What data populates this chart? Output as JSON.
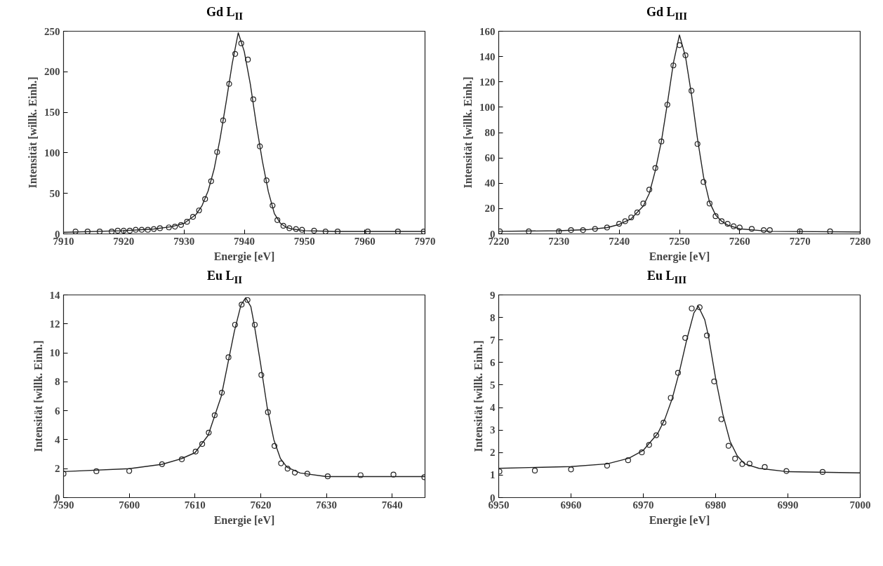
{
  "chart_data": [
    {
      "type": "scatter",
      "title": "Gd L$_{II}$",
      "xlabel": "Energie [eV]",
      "ylabel": "Intensität [willk. Einh.]",
      "xlim": [
        7910,
        7970
      ],
      "xticks": [
        7910,
        7920,
        7930,
        7940,
        7950,
        7960,
        7970
      ],
      "ylim": [
        0,
        250
      ],
      "yticks": [
        0,
        50,
        100,
        150,
        200,
        250
      ],
      "grid": false,
      "series": [
        {
          "marker": "circle",
          "color": "#222222",
          "x": [
            7912,
            7914,
            7916,
            7918,
            7919,
            7920,
            7921,
            7922,
            7923,
            7924,
            7925,
            7926,
            7927.5,
            7928.5,
            7929.5,
            7930.5,
            7931.5,
            7932.5,
            7933.5,
            7934.5,
            7935.5,
            7936.5,
            7937.5,
            7938.5,
            7939.5,
            7940.6,
            7941.5,
            7942.6,
            7943.7,
            7944.7,
            7945.5,
            7946.5,
            7947.5,
            7948.6,
            7949.6,
            7951.6,
            7953.5,
            7955.5,
            7960.5,
            7965.5,
            7969.8
          ],
          "values": [
            3,
            3,
            3,
            3,
            4,
            4,
            4,
            5,
            5,
            5,
            6,
            7,
            8,
            9,
            11,
            15,
            21,
            29,
            43,
            65,
            101,
            140,
            185,
            222,
            235,
            215,
            166,
            108,
            66,
            35,
            17,
            10,
            7,
            6,
            5,
            4,
            3,
            3,
            3,
            3,
            3
          ]
        },
        {
          "type": "line",
          "marker": "none",
          "line_style": "solid",
          "color": "#222222",
          "x": [
            7910,
            7920,
            7925,
            7928,
            7930,
            7932,
            7933,
            7934,
            7935,
            7936,
            7937,
            7938,
            7939,
            7940,
            7941,
            7942,
            7943,
            7944,
            7945,
            7946,
            7947,
            7948,
            7950,
            7955,
            7970
          ],
          "values": [
            2,
            4,
            6,
            9,
            13,
            24,
            35,
            53,
            80,
            118,
            163,
            210,
            248,
            225,
            185,
            135,
            90,
            52,
            25,
            13,
            8,
            6,
            4,
            3,
            3
          ]
        }
      ]
    },
    {
      "type": "scatter",
      "title": "Gd L$_{III}$",
      "xlabel": "Energie [eV]",
      "ylabel": "Intensität [willk. Einh.]",
      "xlim": [
        7220,
        7280
      ],
      "xticks": [
        7220,
        7230,
        7240,
        7250,
        7260,
        7270,
        7280
      ],
      "ylim": [
        0,
        160
      ],
      "yticks": [
        0,
        20,
        40,
        60,
        80,
        100,
        120,
        140,
        160
      ],
      "grid": false,
      "series": [
        {
          "marker": "circle",
          "color": "#222222",
          "x": [
            7220.2,
            7225,
            7230,
            7232,
            7234,
            7236,
            7238,
            7240,
            7241,
            7242,
            7243,
            7244,
            7245,
            7246,
            7247,
            7248,
            7249,
            7250,
            7251,
            7252,
            7253,
            7254,
            7255,
            7256,
            7257,
            7258,
            7259,
            7260,
            7262,
            7264,
            7265,
            7270,
            7275
          ],
          "values": [
            2,
            2,
            2,
            3,
            3,
            4,
            5,
            8,
            10,
            13,
            17,
            24,
            35,
            52,
            73,
            102,
            133,
            149,
            141,
            113,
            71,
            41,
            24,
            14,
            10,
            8,
            6,
            5,
            4,
            3,
            3,
            2,
            2
          ]
        },
        {
          "type": "line",
          "marker": "none",
          "line_style": "solid",
          "color": "#222222",
          "x": [
            7220,
            7230,
            7235,
            7238,
            7240,
            7242,
            7244,
            7245,
            7246,
            7247,
            7248,
            7249,
            7250,
            7251,
            7252,
            7253,
            7254,
            7255,
            7256,
            7257,
            7258,
            7260,
            7265,
            7280
          ],
          "values": [
            2,
            2.5,
            3.5,
            5,
            7.5,
            12,
            22,
            32,
            50,
            73,
            103,
            135,
            157,
            140,
            110,
            75,
            45,
            25,
            15,
            10,
            7,
            4,
            2,
            1.5
          ]
        }
      ]
    },
    {
      "type": "scatter",
      "title": "Eu L$_{II}$",
      "xlabel": "Energie [eV]",
      "ylabel": "Intensität [willk. Einh.]",
      "xlim": [
        7590,
        7645
      ],
      "xticks": [
        7590,
        7600,
        7610,
        7620,
        7630,
        7640
      ],
      "ylim": [
        0,
        14
      ],
      "yticks": [
        0,
        2,
        4,
        6,
        8,
        10,
        12,
        14
      ],
      "grid": false,
      "series": [
        {
          "marker": "circle",
          "color": "#222222",
          "x": [
            7590,
            7595,
            7600,
            7605,
            7608,
            7610.1,
            7611.1,
            7612.1,
            7613,
            7614.1,
            7615.1,
            7616.1,
            7617.1,
            7618,
            7619.1,
            7620.1,
            7621.1,
            7622.1,
            7623.1,
            7624.1,
            7625.2,
            7627.1,
            7630.2,
            7635.2,
            7640.2,
            7644.9
          ],
          "values": [
            1.65,
            1.82,
            1.84,
            2.31,
            2.65,
            3.18,
            3.7,
            4.49,
            5.69,
            7.25,
            9.69,
            11.94,
            13.33,
            13.65,
            11.94,
            8.47,
            5.9,
            3.57,
            2.37,
            2.0,
            1.73,
            1.65,
            1.47,
            1.55,
            1.59,
            1.41
          ]
        },
        {
          "type": "line",
          "marker": "none",
          "line_style": "solid",
          "color": "#222222",
          "x": [
            7590,
            7600,
            7605,
            7608,
            7610,
            7612,
            7614,
            7616,
            7617,
            7617.7,
            7618.5,
            7619,
            7620,
            7621,
            7622,
            7623,
            7624,
            7626,
            7630,
            7645
          ],
          "values": [
            1.8,
            2.0,
            2.3,
            2.7,
            3.1,
            4.3,
            7.0,
            11.5,
            13.3,
            13.8,
            13.2,
            12,
            9.2,
            6.2,
            4.0,
            2.7,
            2.1,
            1.7,
            1.45,
            1.45
          ]
        }
      ]
    },
    {
      "type": "scatter",
      "title": "Eu L$_{III}$",
      "xlabel": "Energie [eV]",
      "ylabel": "Intensität [willk. Einh.]",
      "xlim": [
        6950,
        7000
      ],
      "xticks": [
        6950,
        6960,
        6970,
        6980,
        6990,
        7000
      ],
      "ylim": [
        0,
        9
      ],
      "yticks": [
        0,
        1,
        2,
        3,
        4,
        5,
        6,
        7,
        8,
        9
      ],
      "grid": false,
      "series": [
        {
          "marker": "circle",
          "color": "#222222",
          "x": [
            6950.1,
            6955,
            6960,
            6965,
            6967.9,
            6969.8,
            6970.8,
            6971.8,
            6972.8,
            6973.8,
            6974.8,
            6975.8,
            6976.7,
            6977.8,
            6978.8,
            6979.8,
            6980.8,
            6981.8,
            6982.7,
            6983.7,
            6984.7,
            6986.8,
            6989.8,
            6994.8
          ],
          "values": [
            1.16,
            1.2,
            1.25,
            1.42,
            1.66,
            2.01,
            2.34,
            2.77,
            3.33,
            4.43,
            5.54,
            7.09,
            8.4,
            8.45,
            7.2,
            5.16,
            3.48,
            2.3,
            1.73,
            1.49,
            1.51,
            1.36,
            1.18,
            1.14
          ]
        },
        {
          "type": "line",
          "marker": "none",
          "line_style": "solid",
          "color": "#222222",
          "x": [
            6950,
            6960,
            6965,
            6968,
            6970,
            6972,
            6973,
            6974,
            6975,
            6976,
            6977,
            6977.6,
            6978.5,
            6979,
            6980,
            6981,
            6982,
            6983,
            6984,
            6986,
            6990,
            7000
          ],
          "values": [
            1.3,
            1.38,
            1.5,
            1.75,
            2.1,
            2.85,
            3.5,
            4.4,
            5.6,
            7.0,
            8.2,
            8.5,
            7.9,
            7.2,
            5.3,
            3.7,
            2.5,
            1.85,
            1.5,
            1.3,
            1.15,
            1.1
          ]
        }
      ]
    }
  ]
}
